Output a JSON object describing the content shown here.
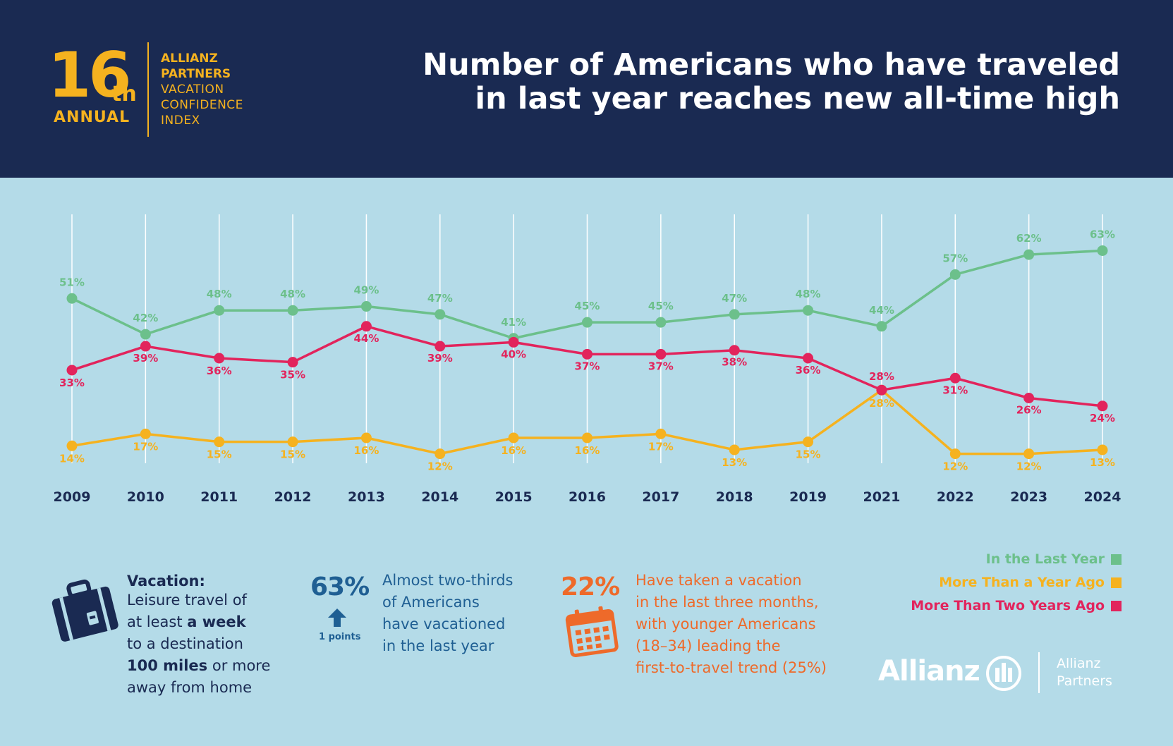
{
  "badge": {
    "number": "16",
    "suffix": "th",
    "annual": "ANNUAL",
    "line1": "ALLIANZ",
    "line2": "PARTNERS",
    "line3": "VACATION",
    "line4": "CONFIDENCE",
    "line5": "INDEX"
  },
  "title": {
    "line1": "Number of Americans who have traveled",
    "line2": "in last year reaches new all-time high"
  },
  "colors": {
    "header": "#1a2a52",
    "background": "#b4dbe8",
    "green": "#6cc08b",
    "yellow": "#f5b21f",
    "red": "#e2245c",
    "navy": "#1a2a52",
    "blue": "#1f5f93",
    "orange": "#ee6a2a"
  },
  "chart_data": {
    "type": "line",
    "categories": [
      "2009",
      "2010",
      "2011",
      "2012",
      "2013",
      "2014",
      "2015",
      "2016",
      "2017",
      "2018",
      "2019",
      "2021",
      "2022",
      "2023",
      "2024"
    ],
    "series": [
      {
        "name": "In the Last Year",
        "color": "#6cc08b",
        "values": [
          51,
          42,
          48,
          48,
          49,
          47,
          41,
          45,
          45,
          47,
          48,
          44,
          57,
          62,
          63
        ],
        "labels": [
          "51%",
          "42%",
          "48%",
          "48%",
          "49%",
          "47%",
          "41%",
          "45%",
          "45%",
          "47%",
          "48%",
          "44%",
          "57%",
          "62%",
          "63%"
        ]
      },
      {
        "name": "More Than a Year Ago",
        "color": "#f5b21f",
        "values": [
          14,
          17,
          15,
          15,
          16,
          12,
          16,
          16,
          17,
          13,
          15,
          28,
          12,
          12,
          13
        ],
        "labels": [
          "14%",
          "17%",
          "15%",
          "15%",
          "16%",
          "12%",
          "16%",
          "16%",
          "17%",
          "13%",
          "15%",
          "28%",
          "12%",
          "12%",
          "13%"
        ]
      },
      {
        "name": "More Than Two Years Ago",
        "color": "#e2245c",
        "values": [
          33,
          39,
          36,
          35,
          44,
          39,
          40,
          37,
          37,
          38,
          36,
          28,
          31,
          26,
          24
        ],
        "labels": [
          "33%",
          "39%",
          "36%",
          "35%",
          "44%",
          "39%",
          "40%",
          "37%",
          "37%",
          "38%",
          "36%",
          "28%",
          "31%",
          "26%",
          "24%"
        ]
      }
    ],
    "legend_position": "bottom-right",
    "grid": "vertical"
  },
  "legend": [
    {
      "label": "In the Last Year",
      "color": "#6cc08b"
    },
    {
      "label": "More Than a Year Ago",
      "color": "#f5b21f"
    },
    {
      "label": "More Than Two Years Ago",
      "color": "#e2245c"
    }
  ],
  "vacation": {
    "title": "Vacation:",
    "l1": "Leisure travel of",
    "l2a": "at least ",
    "l2b": "a week",
    "l3": "to a destination",
    "l4a": "100 miles",
    "l4b": " or more",
    "l5": "away from home",
    "icon": "suitcase-icon"
  },
  "stat1": {
    "value": "63%",
    "change": "1 points",
    "icon": "arrow-up-icon",
    "l1": "Almost two-thirds",
    "l2": "of Americans",
    "l3": "have vacationed",
    "l4": "in the last year"
  },
  "stat2": {
    "value": "22%",
    "icon": "calendar-icon",
    "l1": "Have taken a vacation",
    "l2": "in the last three months,",
    "l3": "with younger Americans",
    "l4": "(18–34) leading the",
    "l5": "first-to-travel trend (25%)"
  },
  "logo": {
    "brand": "Allianz",
    "sub1": "Allianz",
    "sub2": "Partners"
  }
}
